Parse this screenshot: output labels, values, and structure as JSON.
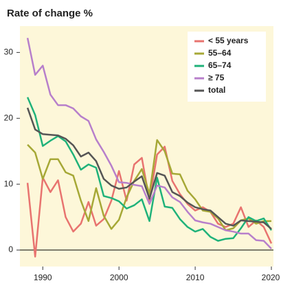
{
  "chart_data": {
    "type": "line",
    "title": "Rate of change %",
    "x": [
      1988,
      1989,
      1990,
      1991,
      1992,
      1993,
      1994,
      1995,
      1996,
      1997,
      1998,
      1999,
      2000,
      2001,
      2002,
      2003,
      2004,
      2005,
      2006,
      2007,
      2008,
      2009,
      2010,
      2011,
      2012,
      2013,
      2014,
      2015,
      2016,
      2017,
      2018,
      2019,
      2020
    ],
    "series": [
      {
        "name": "< 55 years",
        "color": "#e8736f",
        "values": [
          10.2,
          -1,
          11,
          8.8,
          10.6,
          5,
          2.8,
          4,
          7.3,
          3.7,
          4.7,
          7.5,
          12,
          7.5,
          13,
          14,
          7.5,
          14.5,
          15.7,
          10.5,
          8.5,
          7,
          6,
          6.5,
          5.8,
          4,
          3.5,
          4,
          6.5,
          3.5,
          4.5,
          3.5,
          1
        ]
      },
      {
        "name": "55–64",
        "color": "#a6a836",
        "values": [
          16,
          14.8,
          10.8,
          13.8,
          13.8,
          11.8,
          11.3,
          7.5,
          4.4,
          9.4,
          5.2,
          3.2,
          4.6,
          8,
          10.5,
          12.3,
          8.5,
          16.7,
          15,
          11.6,
          11.5,
          9,
          7.7,
          6,
          5.8,
          4.8,
          3,
          3.3,
          4.5,
          4.8,
          4,
          4.4,
          4.4
        ]
      },
      {
        "name": "65–74",
        "color": "#1fb27a",
        "values": [
          23.2,
          20.5,
          15.8,
          16.6,
          17.3,
          16.5,
          14.5,
          12.2,
          13,
          12.5,
          8.2,
          7.9,
          7.4,
          6.3,
          6.8,
          7.7,
          4.4,
          11,
          6.6,
          6.4,
          4.7,
          3.5,
          2.8,
          3.2,
          2,
          1.4,
          1.7,
          1.8,
          3.3,
          5,
          4.4,
          4.8,
          3
        ]
      },
      {
        "name": "≥ 75",
        "color": "#b77fcb",
        "values": [
          32.2,
          26.6,
          28,
          23.6,
          22,
          22,
          21.5,
          20.3,
          19.6,
          16.8,
          14.9,
          12.8,
          10.3,
          10.2,
          9.9,
          9.7,
          7,
          9.8,
          9.5,
          8,
          7.3,
          5.8,
          4.5,
          4.2,
          4,
          3.5,
          3,
          2.8,
          2.5,
          2.5,
          1.5,
          1.4,
          0.2
        ]
      },
      {
        "name": "total",
        "color": "#555555",
        "values": [
          21.6,
          18.3,
          17.6,
          17.5,
          17.4,
          16.9,
          15.9,
          14.2,
          14.8,
          13.5,
          10.8,
          9.8,
          9.3,
          9.5,
          10.4,
          11.2,
          7.8,
          11.7,
          11.3,
          8.8,
          8.2,
          7.2,
          6.5,
          6.2,
          6,
          5,
          4,
          3.7,
          4.5,
          4.4,
          4.3,
          4.2,
          3.2
        ]
      }
    ],
    "xlim": [
      1987,
      2020
    ],
    "xticks": [
      1990,
      2000,
      2010,
      2020
    ],
    "ylim": [
      -2.5,
      34
    ],
    "yticks": [
      0,
      10,
      20,
      30
    ],
    "legend": "upper right",
    "background": "#fdf7d9"
  }
}
